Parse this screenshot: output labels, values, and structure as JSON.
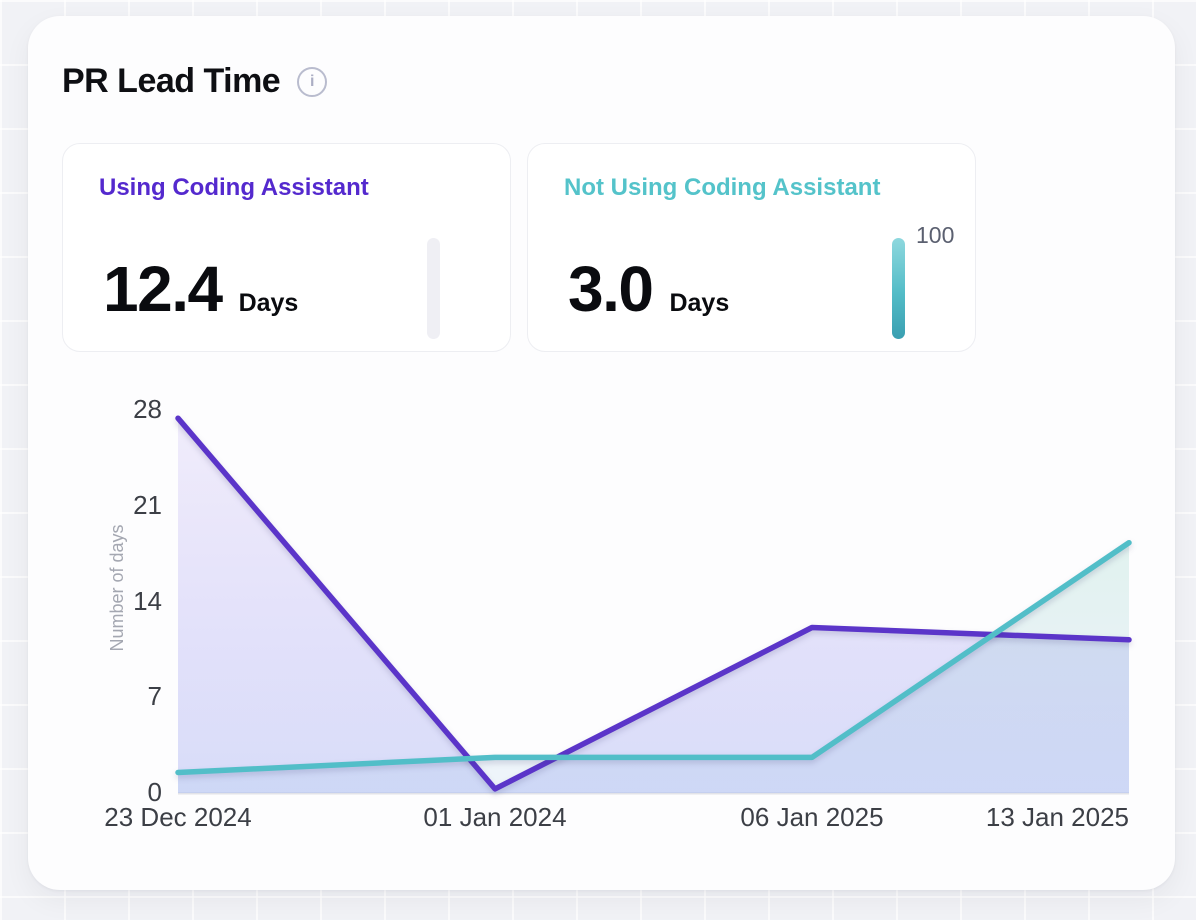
{
  "header": {
    "title": "PR Lead Time",
    "info_icon_glyph": "i"
  },
  "stats": [
    {
      "label": "Using Coding Assistant",
      "value": "12.4",
      "unit": "Days",
      "accent_color": "#5429CE",
      "bar": {
        "state": "empty",
        "track_color": "#EFEFF4"
      }
    },
    {
      "label": "Not Using Coding Assistant",
      "value": "3.0",
      "unit": "Days",
      "accent_color": "#54C3CA",
      "bar": {
        "state": "filled",
        "value_label": "100",
        "gradient_top": "#8ED8DE",
        "gradient_mid": "#52BCC7",
        "gradient_bottom": "#3A9FB1"
      }
    }
  ],
  "chart_data": {
    "type": "line",
    "x": [
      "23 Dec 2024",
      "01 Jan 2024",
      "06 Jan 2025",
      "13 Jan 2025"
    ],
    "series": [
      {
        "name": "Using Coding Assistant",
        "color": "#5B35C9",
        "values": [
          27.4,
          0.3,
          12.1,
          11.2
        ]
      },
      {
        "name": "Not Using Coding Assistant",
        "color": "#52BEC8",
        "values": [
          1.5,
          2.6,
          2.6,
          18.3
        ]
      }
    ],
    "ylabel": "Number of days",
    "yticks": [
      0,
      7,
      14,
      21,
      28
    ],
    "ylim": [
      0,
      28
    ],
    "area_fill": true,
    "grid": false,
    "legend": "none"
  }
}
